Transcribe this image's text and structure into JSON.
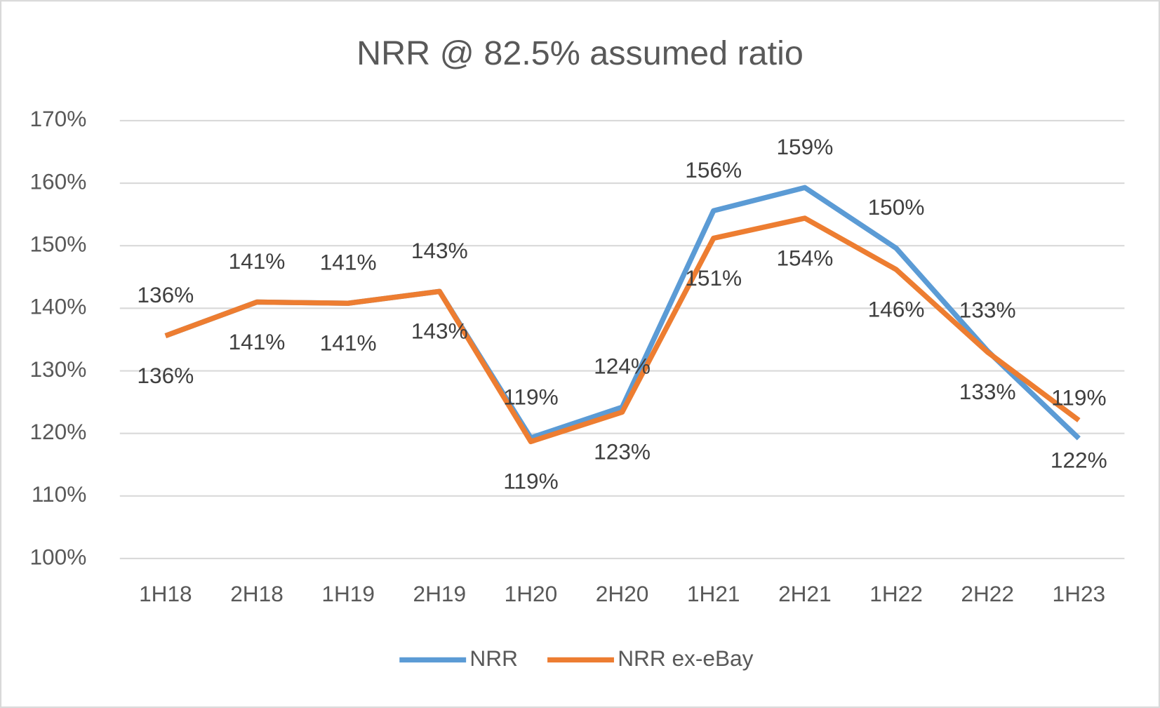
{
  "chart_data": {
    "type": "line",
    "title": "NRR @ 82.5% assumed ratio",
    "categories": [
      "1H18",
      "2H18",
      "1H19",
      "2H19",
      "1H20",
      "2H20",
      "1H21",
      "2H21",
      "1H22",
      "2H22",
      "1H23"
    ],
    "series": [
      {
        "name": "NRR",
        "color": "#5b9bd5",
        "values": [
          135.6,
          141,
          140.8,
          142.7,
          119.3,
          124.2,
          155.6,
          159.3,
          149.6,
          133.2,
          119.2
        ],
        "value_labels": [
          "136%",
          "141%",
          "141%",
          "143%",
          "119%",
          "124%",
          "156%",
          "159%",
          "150%",
          "133%",
          "119%"
        ]
      },
      {
        "name": "NRR ex-eBay",
        "color": "#ed7d31",
        "values": [
          135.6,
          141,
          140.8,
          142.7,
          118.7,
          123.4,
          151.2,
          154.4,
          146.2,
          133,
          122.1
        ],
        "value_labels": [
          "136%",
          "141%",
          "141%",
          "143%",
          "119%",
          "123%",
          "151%",
          "154%",
          "146%",
          "133%",
          "122%"
        ]
      }
    ],
    "ylim": [
      100,
      170
    ],
    "yticks": [
      {
        "value": 100,
        "label": "100%"
      },
      {
        "value": 110,
        "label": "110%"
      },
      {
        "value": 120,
        "label": "120%"
      },
      {
        "value": 130,
        "label": "130%"
      },
      {
        "value": 140,
        "label": "140%"
      },
      {
        "value": 150,
        "label": "150%"
      },
      {
        "value": 160,
        "label": "160%"
      },
      {
        "value": 170,
        "label": "170%"
      }
    ],
    "grid": true,
    "legend": "bottom"
  }
}
